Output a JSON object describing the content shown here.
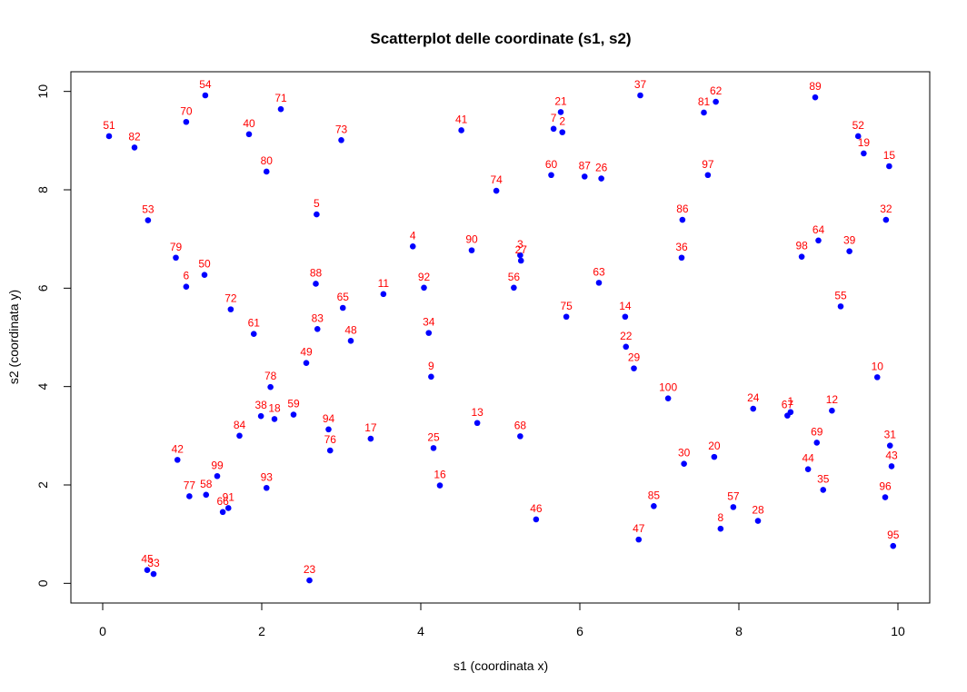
{
  "chart_data": {
    "type": "scatter",
    "title": "Scatterplot delle coordinate (s1, s2)",
    "xlabel": "s1 (coordinata x)",
    "ylabel": "s2 (coordinata y)",
    "xlim": [
      -0.4,
      10.4
    ],
    "ylim": [
      -0.4,
      10.4
    ],
    "x_ticks": [
      0,
      2,
      4,
      6,
      8,
      10
    ],
    "y_ticks": [
      0,
      2,
      4,
      6,
      8,
      10
    ],
    "grid": false,
    "point_color": "#0000ff",
    "label_color": "#ff0000",
    "points": [
      {
        "label": "1",
        "x": 8.65,
        "y": 3.48
      },
      {
        "label": "2",
        "x": 5.78,
        "y": 9.17
      },
      {
        "label": "3",
        "x": 5.25,
        "y": 6.67
      },
      {
        "label": "4",
        "x": 3.9,
        "y": 6.85
      },
      {
        "label": "5",
        "x": 2.69,
        "y": 7.5
      },
      {
        "label": "6",
        "x": 1.05,
        "y": 6.03
      },
      {
        "label": "7",
        "x": 5.67,
        "y": 9.24
      },
      {
        "label": "8",
        "x": 7.77,
        "y": 1.11
      },
      {
        "label": "9",
        "x": 4.13,
        "y": 4.2
      },
      {
        "label": "10",
        "x": 9.74,
        "y": 4.19
      },
      {
        "label": "11",
        "x": 3.53,
        "y": 5.88
      },
      {
        "label": "12",
        "x": 9.17,
        "y": 3.51
      },
      {
        "label": "13",
        "x": 4.71,
        "y": 3.26
      },
      {
        "label": "14",
        "x": 6.57,
        "y": 5.42
      },
      {
        "label": "15",
        "x": 9.89,
        "y": 8.48
      },
      {
        "label": "16",
        "x": 4.24,
        "y": 1.99
      },
      {
        "label": "17",
        "x": 3.37,
        "y": 2.94
      },
      {
        "label": "18",
        "x": 2.16,
        "y": 3.34
      },
      {
        "label": "19",
        "x": 9.57,
        "y": 8.74
      },
      {
        "label": "20",
        "x": 7.69,
        "y": 2.57
      },
      {
        "label": "21",
        "x": 5.76,
        "y": 9.58
      },
      {
        "label": "22",
        "x": 6.58,
        "y": 4.81
      },
      {
        "label": "23",
        "x": 2.6,
        "y": 0.06
      },
      {
        "label": "24",
        "x": 8.18,
        "y": 3.55
      },
      {
        "label": "25",
        "x": 4.16,
        "y": 2.75
      },
      {
        "label": "26",
        "x": 6.27,
        "y": 8.23
      },
      {
        "label": "27",
        "x": 5.26,
        "y": 6.56
      },
      {
        "label": "28",
        "x": 8.24,
        "y": 1.27
      },
      {
        "label": "29",
        "x": 6.68,
        "y": 4.37
      },
      {
        "label": "30",
        "x": 7.31,
        "y": 2.43
      },
      {
        "label": "31",
        "x": 9.9,
        "y": 2.8
      },
      {
        "label": "32",
        "x": 9.85,
        "y": 7.39
      },
      {
        "label": "33",
        "x": 0.64,
        "y": 0.19
      },
      {
        "label": "34",
        "x": 4.1,
        "y": 5.09
      },
      {
        "label": "35",
        "x": 9.06,
        "y": 1.9
      },
      {
        "label": "36",
        "x": 7.28,
        "y": 6.62
      },
      {
        "label": "37",
        "x": 6.76,
        "y": 9.92
      },
      {
        "label": "38",
        "x": 1.99,
        "y": 3.4
      },
      {
        "label": "39",
        "x": 9.39,
        "y": 6.75
      },
      {
        "label": "40",
        "x": 1.84,
        "y": 9.13
      },
      {
        "label": "41",
        "x": 4.51,
        "y": 9.21
      },
      {
        "label": "42",
        "x": 0.94,
        "y": 2.51
      },
      {
        "label": "43",
        "x": 9.92,
        "y": 2.38
      },
      {
        "label": "44",
        "x": 8.87,
        "y": 2.32
      },
      {
        "label": "45",
        "x": 0.56,
        "y": 0.27
      },
      {
        "label": "46",
        "x": 5.45,
        "y": 1.3
      },
      {
        "label": "47",
        "x": 6.74,
        "y": 0.89
      },
      {
        "label": "48",
        "x": 3.12,
        "y": 4.93
      },
      {
        "label": "49",
        "x": 2.56,
        "y": 4.48
      },
      {
        "label": "50",
        "x": 1.28,
        "y": 6.27
      },
      {
        "label": "51",
        "x": 0.08,
        "y": 9.09
      },
      {
        "label": "52",
        "x": 9.5,
        "y": 9.09
      },
      {
        "label": "53",
        "x": 0.57,
        "y": 7.38
      },
      {
        "label": "54",
        "x": 1.29,
        "y": 9.92
      },
      {
        "label": "55",
        "x": 9.28,
        "y": 5.63
      },
      {
        "label": "56",
        "x": 5.17,
        "y": 6.01
      },
      {
        "label": "57",
        "x": 7.93,
        "y": 1.55
      },
      {
        "label": "58",
        "x": 1.3,
        "y": 1.8
      },
      {
        "label": "59",
        "x": 2.4,
        "y": 3.43
      },
      {
        "label": "60",
        "x": 5.64,
        "y": 8.3
      },
      {
        "label": "61",
        "x": 1.9,
        "y": 5.07
      },
      {
        "label": "62",
        "x": 7.71,
        "y": 9.79
      },
      {
        "label": "63",
        "x": 6.24,
        "y": 6.11
      },
      {
        "label": "64",
        "x": 9,
        "y": 6.97
      },
      {
        "label": "65",
        "x": 3.02,
        "y": 5.6
      },
      {
        "label": "66",
        "x": 1.51,
        "y": 1.45
      },
      {
        "label": "67",
        "x": 8.61,
        "y": 3.41
      },
      {
        "label": "68",
        "x": 5.25,
        "y": 2.99
      },
      {
        "label": "69",
        "x": 8.98,
        "y": 2.86
      },
      {
        "label": "70",
        "x": 1.05,
        "y": 9.38
      },
      {
        "label": "71",
        "x": 2.24,
        "y": 9.64
      },
      {
        "label": "72",
        "x": 1.61,
        "y": 5.57
      },
      {
        "label": "73",
        "x": 3.0,
        "y": 9.01
      },
      {
        "label": "74",
        "x": 4.95,
        "y": 7.98
      },
      {
        "label": "75",
        "x": 5.83,
        "y": 5.42
      },
      {
        "label": "76",
        "x": 2.86,
        "y": 2.7
      },
      {
        "label": "77",
        "x": 1.09,
        "y": 1.77
      },
      {
        "label": "78",
        "x": 2.11,
        "y": 3.99
      },
      {
        "label": "79",
        "x": 0.92,
        "y": 6.62
      },
      {
        "label": "80",
        "x": 2.06,
        "y": 8.37
      },
      {
        "label": "81",
        "x": 7.56,
        "y": 9.57
      },
      {
        "label": "82",
        "x": 0.4,
        "y": 8.86
      },
      {
        "label": "83",
        "x": 2.7,
        "y": 5.17
      },
      {
        "label": "84",
        "x": 1.72,
        "y": 3.0
      },
      {
        "label": "85",
        "x": 6.93,
        "y": 1.57
      },
      {
        "label": "86",
        "x": 7.29,
        "y": 7.39
      },
      {
        "label": "87",
        "x": 6.06,
        "y": 8.27
      },
      {
        "label": "88",
        "x": 2.68,
        "y": 6.09
      },
      {
        "label": "89",
        "x": 8.96,
        "y": 9.88
      },
      {
        "label": "90",
        "x": 4.64,
        "y": 6.77
      },
      {
        "label": "91",
        "x": 1.58,
        "y": 1.53
      },
      {
        "label": "92",
        "x": 4.04,
        "y": 6.01
      },
      {
        "label": "93",
        "x": 2.06,
        "y": 1.94
      },
      {
        "label": "94",
        "x": 2.84,
        "y": 3.13
      },
      {
        "label": "95",
        "x": 9.94,
        "y": 0.76
      },
      {
        "label": "96",
        "x": 9.84,
        "y": 1.75
      },
      {
        "label": "97",
        "x": 7.61,
        "y": 8.3
      },
      {
        "label": "98",
        "x": 8.79,
        "y": 6.64
      },
      {
        "label": "99",
        "x": 1.44,
        "y": 2.18
      },
      {
        "label": "100",
        "x": 7.11,
        "y": 3.76
      }
    ]
  }
}
